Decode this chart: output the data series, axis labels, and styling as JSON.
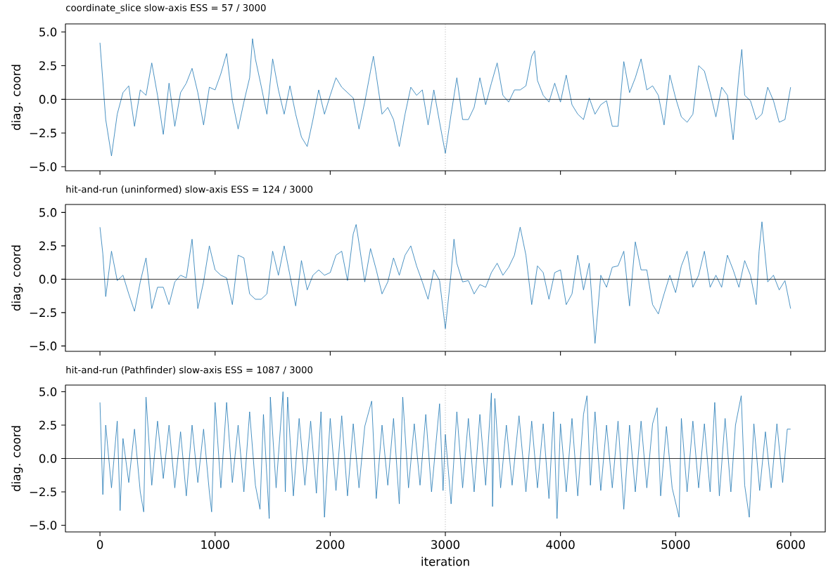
{
  "chart_data": [
    {
      "type": "line",
      "title": "coordinate_slice   slow-axis ESS = 57 / 3000",
      "ylabel": "diag. coord",
      "xlim": [
        -300,
        6300
      ],
      "ylim": [
        -5.3,
        5.6
      ],
      "xticks": [
        0,
        1000,
        2000,
        3000,
        4000,
        5000,
        6000
      ],
      "yticks": [
        {
          "value": -5,
          "label": "−5.0"
        },
        {
          "value": -2.5,
          "label": "−2.5"
        },
        {
          "value": 0,
          "label": "0.0"
        },
        {
          "value": 2.5,
          "label": "2.5"
        },
        {
          "value": 5,
          "label": "5.0"
        }
      ],
      "tick_labels": "y",
      "ref_lines": [
        {
          "axis": "y",
          "value": 0,
          "color": "#000000",
          "line_style": "solid"
        },
        {
          "axis": "x",
          "value": 3000,
          "color": "#808080",
          "line_style": "dotted"
        }
      ],
      "series": [
        {
          "color": "#1f77b4",
          "x": [
            0,
            50,
            100,
            150,
            200,
            250,
            300,
            350,
            400,
            450,
            500,
            550,
            600,
            650,
            700,
            750,
            800,
            850,
            900,
            950,
            1000,
            1050,
            1100,
            1150,
            1200,
            1250,
            1300,
            1325,
            1350,
            1400,
            1450,
            1500,
            1550,
            1600,
            1650,
            1700,
            1750,
            1800,
            1850,
            1900,
            1950,
            2000,
            2050,
            2100,
            2150,
            2200,
            2250,
            2300,
            2350,
            2375,
            2400,
            2450,
            2500,
            2550,
            2600,
            2650,
            2700,
            2750,
            2800,
            2850,
            2900,
            2950,
            3000,
            3050,
            3100,
            3150,
            3200,
            3250,
            3300,
            3350,
            3400,
            3450,
            3500,
            3550,
            3600,
            3650,
            3700,
            3750,
            3775,
            3800,
            3850,
            3900,
            3950,
            4000,
            4050,
            4100,
            4150,
            4200,
            4250,
            4300,
            4350,
            4400,
            4450,
            4500,
            4550,
            4600,
            4650,
            4700,
            4750,
            4800,
            4850,
            4900,
            4950,
            5000,
            5050,
            5100,
            5150,
            5200,
            5250,
            5300,
            5350,
            5400,
            5450,
            5500,
            5550,
            5575,
            5600,
            5650,
            5700,
            5750,
            5800,
            5850,
            5900,
            5950,
            5999
          ],
          "values": [
            4.2,
            -1.5,
            -4.2,
            -1.1,
            0.5,
            1.0,
            -2.0,
            0.7,
            0.3,
            2.7,
            0.3,
            -2.6,
            1.2,
            -2.0,
            0.5,
            1.2,
            2.3,
            0.5,
            -1.9,
            0.9,
            0.7,
            1.9,
            3.4,
            -0.1,
            -2.2,
            -0.2,
            1.6,
            4.5,
            3.0,
            1.0,
            -1.1,
            3.0,
            0.7,
            -1.1,
            1.0,
            -1.1,
            -2.8,
            -3.5,
            -1.5,
            0.7,
            -1.1,
            0.3,
            1.6,
            0.9,
            0.5,
            0.1,
            -2.2,
            -0.2,
            2.1,
            3.2,
            1.8,
            -1.1,
            -0.6,
            -1.5,
            -3.5,
            -1.1,
            0.9,
            0.3,
            0.7,
            -1.9,
            0.7,
            -1.7,
            -4.0,
            -1.1,
            1.6,
            -1.5,
            -1.5,
            -0.6,
            1.6,
            -0.4,
            1.2,
            2.7,
            0.3,
            -0.2,
            0.7,
            0.7,
            1.0,
            3.2,
            3.6,
            1.4,
            0.3,
            -0.2,
            1.2,
            -0.2,
            1.8,
            -0.4,
            -1.1,
            -1.5,
            0.1,
            -1.1,
            -0.4,
            -0.1,
            -2.0,
            -2.0,
            2.8,
            0.5,
            1.6,
            3.0,
            0.7,
            1.0,
            0.3,
            -1.9,
            1.8,
            0.1,
            -1.3,
            -1.7,
            -1.1,
            2.5,
            2.1,
            0.5,
            -1.3,
            0.9,
            0.3,
            -3.0,
            1.8,
            3.7,
            0.3,
            -0.1,
            -1.5,
            -1.1,
            0.9,
            -0.1,
            -1.7,
            -1.5,
            0.9
          ]
        }
      ]
    },
    {
      "type": "line",
      "title": "hit-and-run (uninformed)   slow-axis ESS = 124 / 3000",
      "ylabel": "diag. coord",
      "xlim": [
        -300,
        6300
      ],
      "ylim": [
        -5.4,
        5.6
      ],
      "xticks": [
        0,
        1000,
        2000,
        3000,
        4000,
        5000,
        6000
      ],
      "yticks": [
        {
          "value": -5,
          "label": "−5.0"
        },
        {
          "value": -2.5,
          "label": "−2.5"
        },
        {
          "value": 0,
          "label": "0.0"
        },
        {
          "value": 2.5,
          "label": "2.5"
        },
        {
          "value": 5,
          "label": "5.0"
        }
      ],
      "tick_labels": "y",
      "ref_lines": [
        {
          "axis": "y",
          "value": 0,
          "color": "#000000",
          "line_style": "solid"
        },
        {
          "axis": "x",
          "value": 3000,
          "color": "#808080",
          "line_style": "dotted"
        }
      ],
      "series": [
        {
          "color": "#1f77b4",
          "x": [
            0,
            25,
            50,
            100,
            150,
            200,
            250,
            300,
            350,
            400,
            450,
            500,
            550,
            600,
            650,
            700,
            750,
            800,
            850,
            900,
            950,
            1000,
            1050,
            1100,
            1150,
            1200,
            1250,
            1300,
            1350,
            1400,
            1450,
            1500,
            1550,
            1600,
            1650,
            1700,
            1750,
            1800,
            1850,
            1900,
            1950,
            2000,
            2050,
            2100,
            2150,
            2200,
            2225,
            2250,
            2300,
            2350,
            2400,
            2450,
            2500,
            2550,
            2600,
            2650,
            2700,
            2750,
            2800,
            2850,
            2900,
            2950,
            3000,
            3050,
            3075,
            3100,
            3150,
            3200,
            3250,
            3300,
            3350,
            3400,
            3450,
            3500,
            3550,
            3600,
            3650,
            3700,
            3750,
            3800,
            3850,
            3900,
            3950,
            4000,
            4050,
            4100,
            4150,
            4200,
            4250,
            4300,
            4350,
            4400,
            4450,
            4500,
            4550,
            4600,
            4650,
            4700,
            4750,
            4800,
            4850,
            4900,
            4950,
            5000,
            5050,
            5100,
            5150,
            5200,
            5250,
            5300,
            5350,
            5400,
            5450,
            5500,
            5550,
            5600,
            5650,
            5700,
            5725,
            5750,
            5800,
            5850,
            5900,
            5950,
            5999
          ],
          "values": [
            3.9,
            1.9,
            -1.3,
            2.1,
            -0.1,
            0.3,
            -1.1,
            -2.4,
            -0.2,
            1.6,
            -2.2,
            -0.6,
            -0.6,
            -1.9,
            -0.2,
            0.3,
            0.1,
            3.0,
            -2.2,
            -0.2,
            2.5,
            0.7,
            0.3,
            0.1,
            -1.9,
            1.8,
            1.6,
            -1.1,
            -1.5,
            -1.5,
            -1.1,
            2.1,
            0.3,
            2.5,
            0.3,
            -2.0,
            1.4,
            -0.8,
            0.3,
            0.7,
            0.3,
            0.5,
            1.8,
            2.1,
            -0.1,
            3.4,
            4.1,
            2.7,
            -0.2,
            2.3,
            0.7,
            -1.1,
            -0.2,
            1.6,
            0.3,
            1.8,
            2.5,
            1.0,
            -0.2,
            -1.5,
            0.7,
            -0.1,
            -3.7,
            0.5,
            3.0,
            1.2,
            -0.2,
            -0.1,
            -1.1,
            -0.4,
            -0.6,
            0.5,
            1.2,
            0.3,
            0.9,
            1.8,
            3.9,
            1.8,
            -1.9,
            1.0,
            0.5,
            -1.5,
            0.5,
            0.7,
            -1.9,
            -1.1,
            1.8,
            -0.8,
            1.2,
            -4.8,
            0.3,
            -0.6,
            0.9,
            1.0,
            2.1,
            -2.0,
            2.8,
            0.7,
            0.7,
            -1.9,
            -2.6,
            -1.1,
            0.3,
            -1.0,
            1.0,
            2.1,
            -0.6,
            0.3,
            2.1,
            -0.6,
            0.3,
            -0.6,
            1.8,
            0.7,
            -0.6,
            1.4,
            0.3,
            -1.9,
            2.1,
            4.3,
            -0.2,
            0.3,
            -0.8,
            -0.1,
            -2.2
          ]
        }
      ]
    },
    {
      "type": "line",
      "title": "hit-and-run (Pathfinder)   slow-axis ESS = 1087 / 3000",
      "xlabel": "iteration",
      "ylabel": "diag. coord",
      "xlim": [
        -300,
        6300
      ],
      "ylim": [
        -5.5,
        5.5
      ],
      "xticks": [
        0,
        1000,
        2000,
        3000,
        4000,
        5000,
        6000
      ],
      "yticks": [
        {
          "value": -5,
          "label": "−5.0"
        },
        {
          "value": -2.5,
          "label": "−2.5"
        },
        {
          "value": 0,
          "label": "0.0"
        },
        {
          "value": 2.5,
          "label": "2.5"
        },
        {
          "value": 5,
          "label": "5.0"
        }
      ],
      "ref_lines": [
        {
          "axis": "y",
          "value": 0,
          "color": "#000000",
          "line_style": "solid"
        },
        {
          "axis": "x",
          "value": 3000,
          "color": "#808080",
          "line_style": "dotted"
        }
      ],
      "series": [
        {
          "color": "#1f77b4",
          "x": [
            0,
            25,
            50,
            100,
            150,
            175,
            200,
            250,
            300,
            350,
            380,
            400,
            450,
            500,
            550,
            600,
            650,
            700,
            750,
            800,
            850,
            900,
            950,
            970,
            1000,
            1050,
            1100,
            1150,
            1200,
            1250,
            1300,
            1350,
            1390,
            1420,
            1470,
            1480,
            1530,
            1590,
            1610,
            1630,
            1680,
            1730,
            1780,
            1830,
            1880,
            1920,
            1950,
            2000,
            2050,
            2100,
            2150,
            2200,
            2250,
            2300,
            2360,
            2400,
            2450,
            2500,
            2550,
            2600,
            2630,
            2680,
            2730,
            2780,
            2830,
            2880,
            2950,
            2980,
            3000,
            3050,
            3100,
            3150,
            3200,
            3250,
            3300,
            3350,
            3400,
            3410,
            3430,
            3480,
            3530,
            3580,
            3640,
            3700,
            3750,
            3800,
            3850,
            3900,
            3940,
            3970,
            4000,
            4050,
            4100,
            4150,
            4200,
            4230,
            4260,
            4300,
            4350,
            4400,
            4450,
            4500,
            4550,
            4600,
            4650,
            4700,
            4750,
            4800,
            4840,
            4870,
            4920,
            4970,
            5030,
            5050,
            5100,
            5150,
            5200,
            5250,
            5300,
            5340,
            5380,
            5430,
            5480,
            5520,
            5570,
            5600,
            5640,
            5680,
            5730,
            5780,
            5830,
            5880,
            5930,
            5970,
            5999
          ],
          "values": [
            4.2,
            -2.7,
            2.5,
            -2.2,
            2.8,
            -3.9,
            1.5,
            -1.8,
            2.2,
            -2.5,
            -4.0,
            4.6,
            -2.0,
            2.8,
            -1.5,
            2.5,
            -2.2,
            2.0,
            -2.8,
            2.5,
            -1.8,
            2.2,
            -2.5,
            -4.0,
            4.2,
            -2.2,
            4.2,
            -1.8,
            2.5,
            -2.5,
            3.5,
            -2.0,
            -3.8,
            3.3,
            -4.5,
            4.6,
            -2.2,
            5.0,
            -2.5,
            4.6,
            -2.8,
            3.0,
            -2.0,
            2.8,
            -2.6,
            3.5,
            -4.4,
            3.0,
            -2.4,
            3.2,
            -2.8,
            2.6,
            -2.2,
            2.4,
            4.3,
            -3.0,
            2.5,
            -2.0,
            3.0,
            -3.4,
            4.6,
            -2.2,
            2.6,
            -2.0,
            3.3,
            -2.5,
            4.1,
            -2.4,
            1.8,
            -3.4,
            3.5,
            -2.2,
            3.0,
            -2.5,
            3.3,
            -2.0,
            4.9,
            -3.6,
            4.5,
            -2.2,
            2.5,
            -2.0,
            3.2,
            -2.5,
            2.8,
            -2.2,
            2.6,
            -3.0,
            3.5,
            -4.5,
            2.6,
            -2.5,
            3.0,
            -2.8,
            3.3,
            4.7,
            -2.0,
            3.5,
            -2.4,
            2.5,
            -2.2,
            2.8,
            -3.8,
            2.5,
            -2.5,
            2.8,
            -2.2,
            2.6,
            3.8,
            -2.8,
            2.4,
            -2.2,
            -4.4,
            3.0,
            -2.5,
            2.8,
            -2.2,
            2.6,
            -2.5,
            4.2,
            -2.8,
            3.0,
            -2.5,
            2.5,
            4.7,
            -2.0,
            -4.4,
            2.6,
            -2.4,
            2.0,
            -2.2,
            2.6,
            -1.8,
            2.2,
            2.2
          ]
        }
      ]
    }
  ]
}
